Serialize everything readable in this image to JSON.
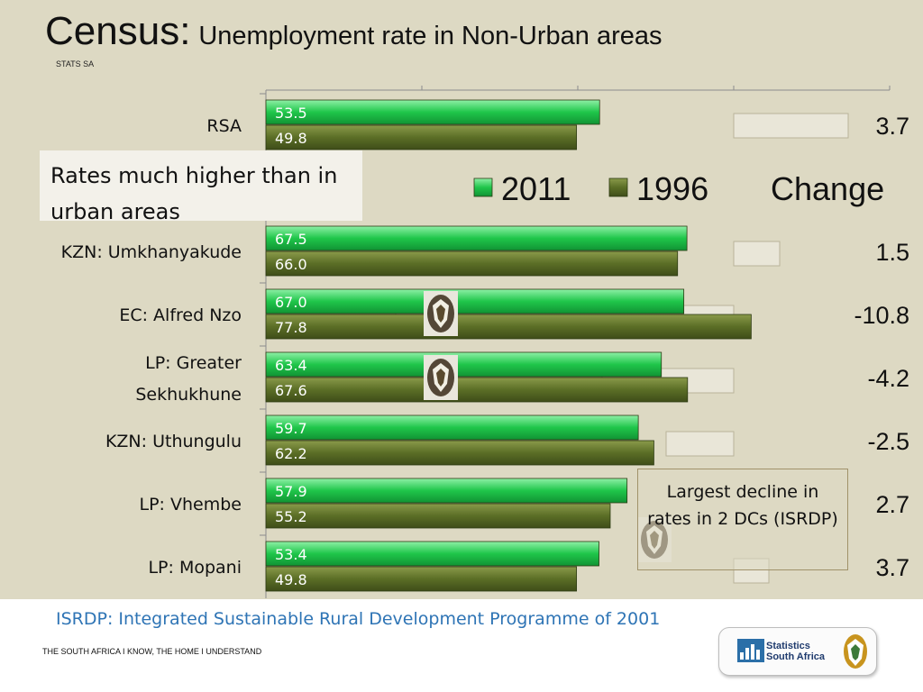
{
  "slide": {
    "title_main": "Census:",
    "title_sub": "Unemployment rate in Non-Urban areas",
    "tag": "STATS SA",
    "note": "Rates much higher than in urban areas",
    "decline_note": "Largest decline in rates in 2 DCs (ISRDP)",
    "footnote": "ISRDP: Integrated Sustainable Rural Development Programme of 2001",
    "tagline": "THE SOUTH AFRICA I KNOW, THE HOME I UNDERSTAND",
    "logo_text_line1": "Statistics",
    "logo_text_line2": "South Africa"
  },
  "chart_data": {
    "type": "bar",
    "orientation": "horizontal",
    "categories": [
      "RSA",
      "KZN: Umkhanyakude",
      "EC: Alfred Nzo",
      "LP: Greater Sekhukhune",
      "KZN: Uthungulu",
      "LP: Vhembe",
      "LP: Mopani"
    ],
    "category_label_lines": [
      [
        "RSA"
      ],
      [
        "KZN: Umkhanyakude"
      ],
      [
        "EC: Alfred Nzo"
      ],
      [
        "LP: Greater",
        "Sekhukhune"
      ],
      [
        "KZN: Uthungulu"
      ],
      [
        "LP: Vhembe"
      ],
      [
        "LP: Mopani"
      ]
    ],
    "hidden_category_rows": [
      1
    ],
    "series": [
      {
        "name": "2011",
        "values": [
          53.5,
          67.5,
          67.0,
          63.4,
          59.7,
          57.9,
          53.4
        ],
        "color": "#1fc64a"
      },
      {
        "name": "1996",
        "values": [
          49.8,
          66.0,
          77.8,
          67.6,
          62.2,
          55.2,
          49.8
        ],
        "color": "#5b6e26"
      }
    ],
    "change_column": {
      "title": "Change",
      "values": [
        "3.7",
        "1.5",
        "-10.8",
        "-4.2",
        "-2.5",
        "2.7",
        "3.7"
      ]
    },
    "value_labels": [
      [
        "53.5",
        "67.5",
        "67.0",
        "63.4",
        "59.7",
        "57.9",
        "53.4"
      ],
      [
        "49.8",
        "66.0",
        "77.8",
        "67.6",
        "62.2",
        "55.2",
        "49.8"
      ]
    ],
    "xlim": [
      0,
      100
    ],
    "grid": true,
    "legend_position": "top-right"
  }
}
